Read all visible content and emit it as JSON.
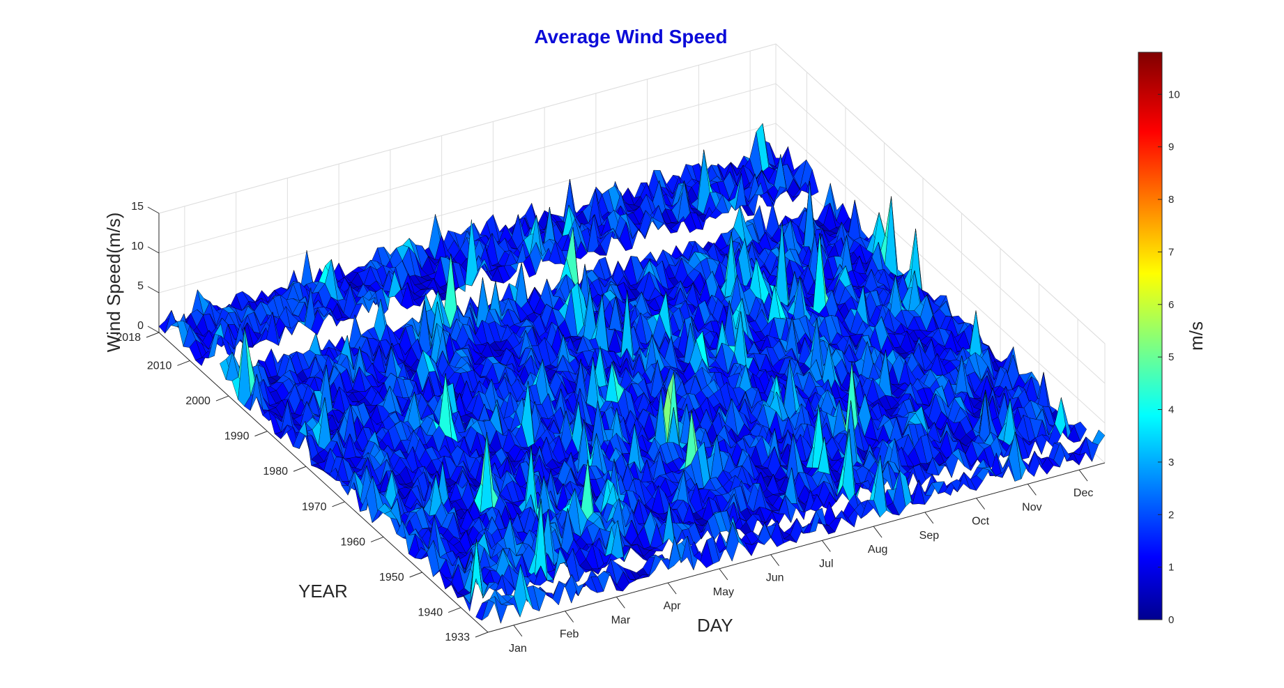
{
  "chart_data": {
    "type": "surface",
    "title": "Average Wind Speed",
    "title_color": "#0b0bd8",
    "xlabel": "DAY",
    "ylabel": "YEAR",
    "zlabel": "Wind Speed(m/s)",
    "x_ticks": [
      "Jan",
      "Feb",
      "Mar",
      "Apr",
      "May",
      "Jun",
      "Jul",
      "Aug",
      "Sep",
      "Oct",
      "Nov",
      "Dec"
    ],
    "y_ticks": [
      "1933",
      "1940",
      "1950",
      "1960",
      "1970",
      "1980",
      "1990",
      "2000",
      "2010",
      "2018"
    ],
    "z_ticks": [
      "0",
      "5",
      "10",
      "15"
    ],
    "zlim": [
      0,
      15
    ],
    "ylim": [
      1933,
      2018
    ],
    "colormap": "jet",
    "colorbar": {
      "label": "m/s",
      "range": [
        0,
        10.8
      ],
      "ticks": [
        "0",
        "1",
        "2",
        "3",
        "4",
        "5",
        "6",
        "7",
        "8",
        "9",
        "10"
      ]
    },
    "typical_value_range": [
      0.5,
      3.5
    ],
    "peak_value": 10.8,
    "data_gaps_years": [
      [
        2003,
        2007
      ],
      [
        1936,
        1938
      ]
    ],
    "grid": true
  }
}
